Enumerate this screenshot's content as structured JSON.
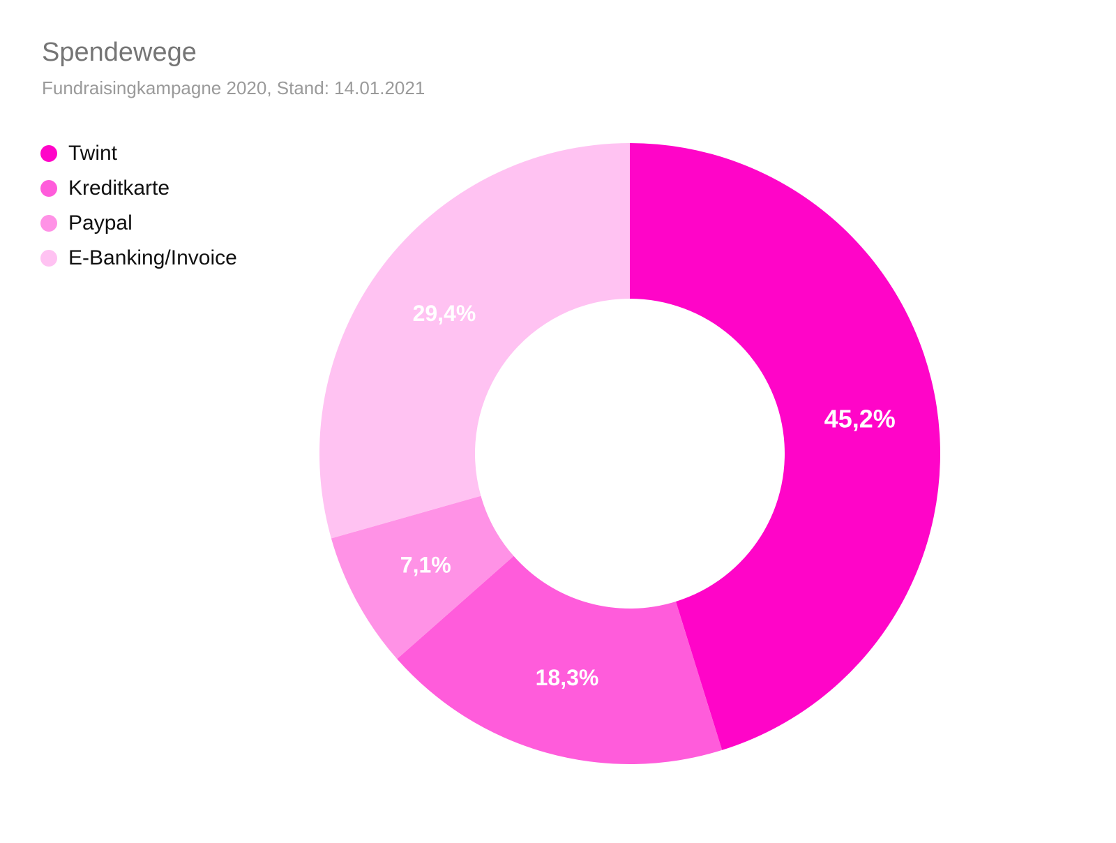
{
  "chart_data": {
    "type": "pie",
    "title": "Spendewege",
    "subtitle": "Fundraisingkampagne 2020, Stand: 14.01.2021",
    "legend_position": "top-left",
    "slices": [
      {
        "label": "Twint",
        "value": 45.2,
        "display": "45,2%",
        "color": "#ff05c8"
      },
      {
        "label": "Kreditkarte",
        "value": 18.3,
        "display": "18,3%",
        "color": "#ff5cdb"
      },
      {
        "label": "Paypal",
        "value": 7.1,
        "display": "7,1%",
        "color": "#ff92e6"
      },
      {
        "label": "E-Banking/Invoice",
        "value": 29.4,
        "display": "29,4%",
        "color": "#ffc2f2"
      }
    ]
  }
}
